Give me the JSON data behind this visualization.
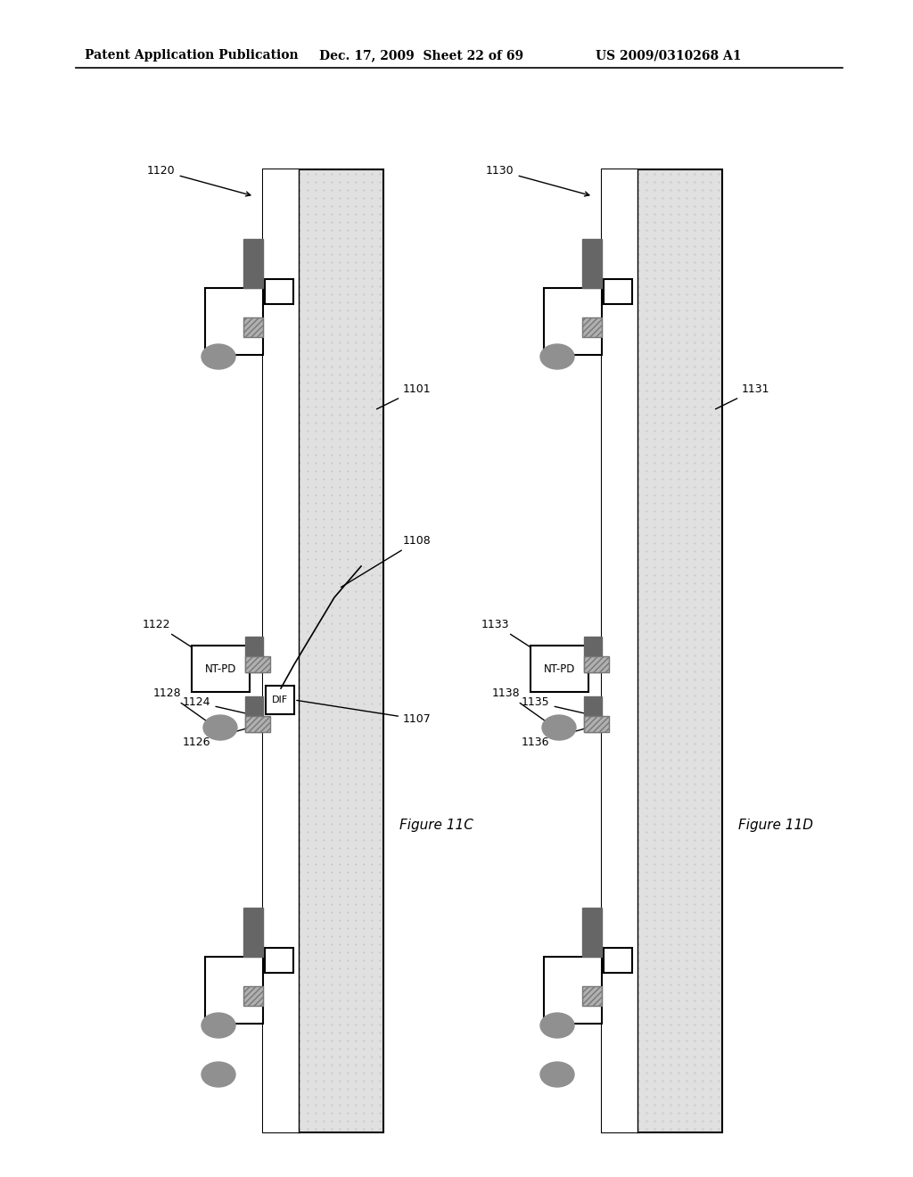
{
  "white": "#ffffff",
  "black": "#000000",
  "dark_gray": "#666666",
  "med_gray": "#999999",
  "light_gray": "#cccccc",
  "board_fill": "#e0e0e0",
  "hatch_fill": "#b0b0b0",
  "ball_color": "#909090",
  "header_text": "Patent Application Publication",
  "header_date": "Dec. 17, 2009  Sheet 22 of 69",
  "header_patent": "US 2009/0310268 A1",
  "fig_c_label": "Figure 11C",
  "fig_d_label": "Figure 11D"
}
